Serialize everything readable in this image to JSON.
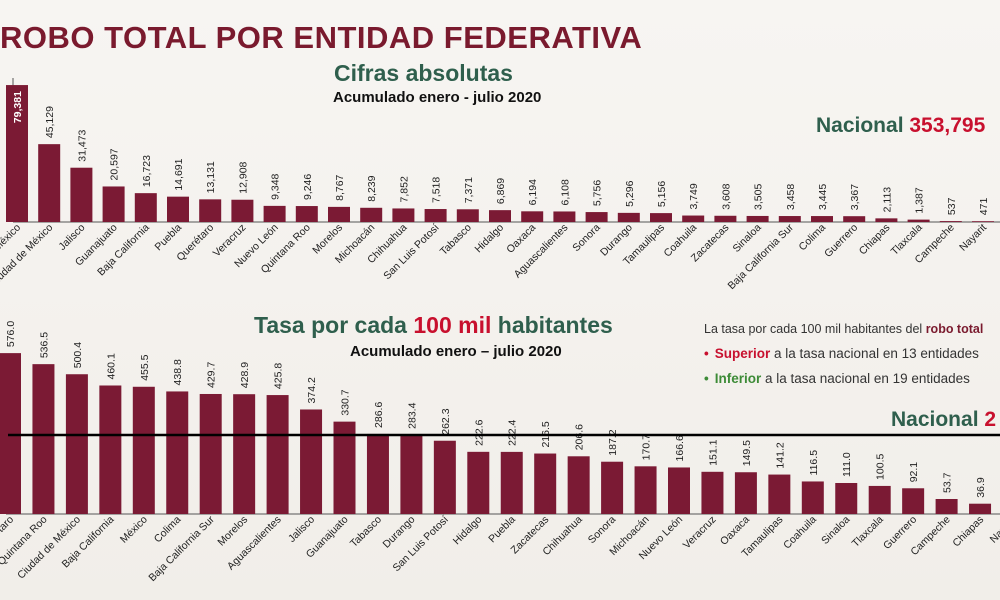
{
  "header": {
    "title": "ROBO TOTAL POR ENTIDAD FEDERATIVA"
  },
  "top": {
    "subtitle": "Cifras absolutas",
    "period": "Acumulado enero - julio 2020",
    "national_label": "Nacional",
    "national_value": "353,795"
  },
  "bottom": {
    "subtitle_a": "Tasa por cada ",
    "subtitle_b": "100 mil",
    "subtitle_c": " habitantes",
    "period": "Acumulado enero – julio 2020",
    "national_label": "Nacional",
    "national_value": "2",
    "note_a": "La tasa por cada 100 mil habitantes del ",
    "note_b": "robo total",
    "bullet_sup_kw": "Superior",
    "bullet_sup_rest": " a la tasa nacional en 13 entidades",
    "bullet_inf_kw": "Inferior",
    "bullet_inf_rest": " a la tasa nacional en 19 entidades"
  },
  "colors": {
    "bar": "#7b1a34",
    "title": "#7a1a2e",
    "subtitle": "#2f5f4d",
    "accent": "#c8102e",
    "green": "#3d8b37"
  },
  "chart_data": [
    {
      "type": "bar",
      "title": "Cifras absolutas",
      "categories": [
        "México",
        "Ciudad de México",
        "Jalisco",
        "Guanajuato",
        "Baja California",
        "Puebla",
        "Querétaro",
        "Veracruz",
        "Nuevo León",
        "Quintana Roo",
        "Morelos",
        "Michoacán",
        "Chihuahua",
        "San Luis Potosí",
        "Tabasco",
        "Hidalgo",
        "Oaxaca",
        "Aguascalientes",
        "Sonora",
        "Durango",
        "Tamaulipas",
        "Coahuila",
        "Zacatecas",
        "Sinaloa",
        "Baja California Sur",
        "Colima",
        "Guerrero",
        "Chiapas",
        "Tlaxcala",
        "Campeche",
        "Nayarit"
      ],
      "values": [
        79381,
        45129,
        31473,
        20597,
        16723,
        14691,
        13131,
        12908,
        9348,
        9246,
        8767,
        8239,
        7852,
        7518,
        7371,
        6869,
        6194,
        6108,
        5756,
        5296,
        5156,
        3749,
        3608,
        3505,
        3458,
        3445,
        3367,
        2113,
        1387,
        537,
        471
      ],
      "labels": [
        "79,381",
        "45,129",
        "31,473",
        "20,597",
        "16,723",
        "14,691",
        "13,131",
        "12,908",
        "9,348",
        "9,246",
        "8,767",
        "8,239",
        "7,852",
        "7,518",
        "7,371",
        "6,869",
        "6,194",
        "6,108",
        "5,756",
        "5,296",
        "5,156",
        "3,749",
        "3,608",
        "3,505",
        "3,458",
        "3,445",
        "3,367",
        "2,113",
        "1,387",
        "537",
        "471"
      ],
      "ylim": [
        0,
        80000
      ]
    },
    {
      "type": "bar",
      "title": "Tasa por cada 100 mil habitantes",
      "categories": [
        "Querétaro",
        "Quintana Roo",
        "Ciudad de México",
        "Baja California",
        "México",
        "Colima",
        "Baja California Sur",
        "Morelos",
        "Aguascalientes",
        "Jalisco",
        "Guanajuato",
        "Tabasco",
        "Durango",
        "San Luis Potosí",
        "Hidalgo",
        "Puebla",
        "Zacatecas",
        "Chihuahua",
        "Sonora",
        "Michoacán",
        "Nuevo León",
        "Veracruz",
        "Oaxaca",
        "Tamaulipas",
        "Coahuila",
        "Sinaloa",
        "Tlaxcala",
        "Guerrero",
        "Campeche",
        "Chiapas",
        "Nayarit"
      ],
      "values": [
        576.0,
        536.5,
        500.4,
        460.1,
        455.5,
        438.8,
        429.7,
        428.9,
        425.8,
        374.2,
        330.7,
        286.6,
        283.4,
        262.3,
        222.6,
        222.4,
        216.5,
        206.6,
        187.2,
        170.7,
        166.6,
        151.1,
        149.5,
        141.2,
        116.5,
        111.0,
        100.5,
        92.1,
        53.7,
        36.9,
        0
      ],
      "labels": [
        "576.0",
        "536.5",
        "500.4",
        "460.1",
        "455.5",
        "438.8",
        "429.7",
        "428.9",
        "425.8",
        "374.2",
        "330.7",
        "286.6",
        "283.4",
        "262.3",
        "222.6",
        "222.4",
        "216.5",
        "206.6",
        "187.2",
        "170.7",
        "166.6",
        "151.1",
        "149.5",
        "141.2",
        "116.5",
        "111.0",
        "100.5",
        "92.1",
        "53.7",
        "36.9",
        ""
      ],
      "ylim": [
        0,
        580
      ]
    }
  ]
}
